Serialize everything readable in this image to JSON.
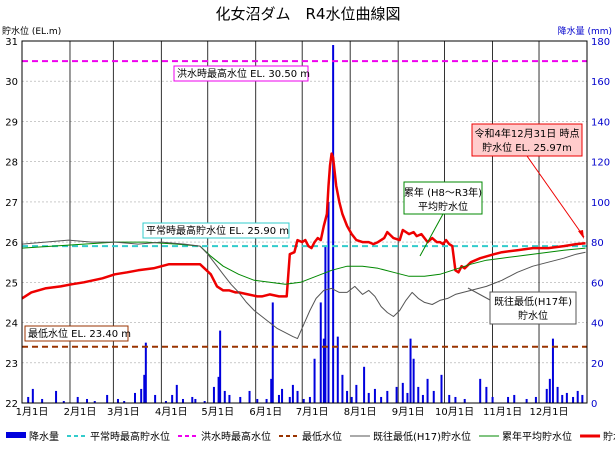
{
  "chart_data": {
    "type": "line",
    "title": "化女沼ダム　R4水位曲線図",
    "ylabel": "貯水位 (EL.m)",
    "y2label": "降水量 (mm)",
    "ylim": [
      22,
      31
    ],
    "y2lim": [
      0,
      180
    ],
    "yticks": [
      "22",
      "23",
      "24",
      "25",
      "26",
      "27",
      "28",
      "29",
      "30",
      "31"
    ],
    "y2ticks": [
      "0",
      "20",
      "40",
      "60",
      "80",
      "100",
      "120",
      "140",
      "160",
      "180"
    ],
    "months": [
      "1月1日",
      "2月1日",
      "3月1日",
      "4月1日",
      "5月1日",
      "6月1日",
      "7月1日",
      "8月1日",
      "9月1日",
      "10月1日",
      "11月1日",
      "12月1日"
    ],
    "colors": {
      "rain": "#0000dd",
      "normal_max": "#33cccc",
      "flood_max": "#ee00ee",
      "min_level": "#993300",
      "hist_low": "#555555",
      "avg": "#008800",
      "level": "#ee0000"
    },
    "hlines": [
      {
        "name": "flood_max",
        "value": 30.5
      },
      {
        "name": "normal_max",
        "value": 25.9
      },
      {
        "name": "min_level",
        "value": 23.4
      }
    ],
    "annotations": {
      "flood": "洪水時最高水位 EL. 30.50 m",
      "normal": "平常時最高貯水位 EL. 25.90 m",
      "minimum": "最低水位 EL. 23.40 m",
      "current_1": "令和4年12月31日 時点",
      "current_2": "貯水位 EL. 25.97m",
      "avg_1": "累年 (H8～R3年)",
      "avg_2": "平均貯水位",
      "hist_1": "既往最低(H17年)",
      "hist_2": "貯水位"
    },
    "legend": [
      {
        "key": "rain",
        "label": "降水量",
        "style": "bar"
      },
      {
        "key": "normal_max",
        "label": "平常時最高貯水位",
        "style": "dash"
      },
      {
        "key": "flood_max",
        "label": "洪水時最高水位",
        "style": "dash"
      },
      {
        "key": "min_level",
        "label": "最低水位",
        "style": "dash"
      },
      {
        "key": "hist_low",
        "label": "既往最低(H17)貯水位",
        "style": "line"
      },
      {
        "key": "avg",
        "label": "累年平均貯水位",
        "style": "line"
      },
      {
        "key": "level",
        "label": "貯水位",
        "style": "thick"
      }
    ],
    "series": [
      {
        "key": "level",
        "points": [
          [
            0,
            24.6
          ],
          [
            6,
            24.75
          ],
          [
            15,
            24.85
          ],
          [
            25,
            24.9
          ],
          [
            32,
            24.95
          ],
          [
            40,
            25.0
          ],
          [
            52,
            25.1
          ],
          [
            60,
            25.2
          ],
          [
            68,
            25.25
          ],
          [
            75,
            25.3
          ],
          [
            85,
            25.35
          ],
          [
            95,
            25.45
          ],
          [
            105,
            25.45
          ],
          [
            115,
            25.45
          ],
          [
            122,
            25.2
          ],
          [
            126,
            24.9
          ],
          [
            130,
            24.8
          ],
          [
            134,
            24.8
          ],
          [
            138,
            24.75
          ],
          [
            140,
            24.75
          ],
          [
            146,
            24.7
          ],
          [
            152,
            24.65
          ],
          [
            155,
            24.65
          ],
          [
            160,
            24.7
          ],
          [
            166,
            24.65
          ],
          [
            171,
            24.65
          ],
          [
            173,
            25.7
          ],
          [
            176,
            25.75
          ],
          [
            178,
            26.05
          ],
          [
            181,
            26.0
          ],
          [
            183,
            26.05
          ],
          [
            185,
            25.9
          ],
          [
            187,
            25.85
          ],
          [
            189,
            26.0
          ],
          [
            191,
            26.1
          ],
          [
            193,
            26.05
          ],
          [
            195,
            26.4
          ],
          [
            197,
            26.7
          ],
          [
            198,
            27.4
          ],
          [
            199,
            27.9
          ],
          [
            200,
            28.2
          ],
          [
            201,
            28.1
          ],
          [
            203,
            27.4
          ],
          [
            205,
            27.0
          ],
          [
            207,
            26.7
          ],
          [
            210,
            26.4
          ],
          [
            213,
            26.2
          ],
          [
            216,
            26.05
          ],
          [
            220,
            26.0
          ],
          [
            224,
            26.0
          ],
          [
            227,
            25.95
          ],
          [
            230,
            26.0
          ],
          [
            234,
            26.1
          ],
          [
            236,
            26.25
          ],
          [
            240,
            26.1
          ],
          [
            244,
            26.05
          ],
          [
            246,
            26.3
          ],
          [
            250,
            26.2
          ],
          [
            253,
            26.25
          ],
          [
            255,
            26.15
          ],
          [
            258,
            26.2
          ],
          [
            262,
            26.0
          ],
          [
            265,
            26.1
          ],
          [
            268,
            26.0
          ],
          [
            270,
            26.0
          ],
          [
            272,
            25.95
          ],
          [
            274,
            26.05
          ],
          [
            276,
            25.95
          ],
          [
            278,
            25.9
          ],
          [
            280,
            25.3
          ],
          [
            282,
            25.25
          ],
          [
            284,
            25.4
          ],
          [
            286,
            25.35
          ],
          [
            290,
            25.5
          ],
          [
            296,
            25.6
          ],
          [
            305,
            25.7
          ],
          [
            310,
            25.75
          ],
          [
            320,
            25.8
          ],
          [
            330,
            25.85
          ],
          [
            340,
            25.85
          ],
          [
            350,
            25.9
          ],
          [
            358,
            25.95
          ],
          [
            364,
            25.97
          ]
        ]
      },
      {
        "key": "avg",
        "points": [
          [
            0,
            25.85
          ],
          [
            20,
            25.9
          ],
          [
            40,
            25.95
          ],
          [
            60,
            26.0
          ],
          [
            80,
            26.0
          ],
          [
            100,
            25.95
          ],
          [
            115,
            25.9
          ],
          [
            122,
            25.65
          ],
          [
            130,
            25.4
          ],
          [
            140,
            25.2
          ],
          [
            150,
            25.05
          ],
          [
            160,
            25.0
          ],
          [
            170,
            24.95
          ],
          [
            180,
            25.0
          ],
          [
            190,
            25.15
          ],
          [
            200,
            25.3
          ],
          [
            210,
            25.4
          ],
          [
            220,
            25.4
          ],
          [
            230,
            25.35
          ],
          [
            240,
            25.25
          ],
          [
            250,
            25.15
          ],
          [
            260,
            25.15
          ],
          [
            270,
            25.2
          ],
          [
            278,
            25.3
          ],
          [
            290,
            25.45
          ],
          [
            300,
            25.55
          ],
          [
            310,
            25.6
          ],
          [
            320,
            25.65
          ],
          [
            330,
            25.7
          ],
          [
            340,
            25.75
          ],
          [
            350,
            25.8
          ],
          [
            364,
            25.85
          ]
        ]
      },
      {
        "key": "hist_low",
        "points": [
          [
            0,
            25.95
          ],
          [
            15,
            26.0
          ],
          [
            30,
            26.05
          ],
          [
            45,
            26.0
          ],
          [
            60,
            26.0
          ],
          [
            75,
            25.95
          ],
          [
            90,
            26.0
          ],
          [
            105,
            25.95
          ],
          [
            115,
            25.9
          ],
          [
            120,
            25.7
          ],
          [
            125,
            25.45
          ],
          [
            130,
            25.2
          ],
          [
            135,
            24.95
          ],
          [
            140,
            24.75
          ],
          [
            145,
            24.5
          ],
          [
            150,
            24.3
          ],
          [
            155,
            24.15
          ],
          [
            160,
            24.0
          ],
          [
            165,
            23.85
          ],
          [
            170,
            23.75
          ],
          [
            175,
            23.65
          ],
          [
            178,
            23.6
          ],
          [
            182,
            23.95
          ],
          [
            186,
            24.3
          ],
          [
            190,
            24.6
          ],
          [
            195,
            24.8
          ],
          [
            200,
            24.85
          ],
          [
            205,
            24.75
          ],
          [
            210,
            24.75
          ],
          [
            215,
            24.9
          ],
          [
            220,
            24.7
          ],
          [
            224,
            24.8
          ],
          [
            228,
            24.65
          ],
          [
            232,
            24.4
          ],
          [
            236,
            24.25
          ],
          [
            240,
            24.15
          ],
          [
            244,
            24.3
          ],
          [
            248,
            24.55
          ],
          [
            252,
            24.75
          ],
          [
            256,
            24.6
          ],
          [
            260,
            24.5
          ],
          [
            265,
            24.45
          ],
          [
            270,
            24.55
          ],
          [
            275,
            24.6
          ],
          [
            280,
            24.7
          ],
          [
            290,
            24.8
          ],
          [
            300,
            24.9
          ],
          [
            310,
            25.05
          ],
          [
            320,
            25.25
          ],
          [
            330,
            25.4
          ],
          [
            340,
            25.5
          ],
          [
            350,
            25.6
          ],
          [
            358,
            25.7
          ],
          [
            364,
            25.75
          ]
        ]
      }
    ],
    "rain": [
      [
        4,
        3
      ],
      [
        7,
        7
      ],
      [
        13,
        2
      ],
      [
        22,
        6
      ],
      [
        27,
        1
      ],
      [
        36,
        3
      ],
      [
        42,
        2
      ],
      [
        47,
        1
      ],
      [
        55,
        4
      ],
      [
        62,
        2
      ],
      [
        66,
        1
      ],
      [
        73,
        5
      ],
      [
        77,
        7
      ],
      [
        79,
        14
      ],
      [
        80,
        30
      ],
      [
        86,
        4
      ],
      [
        93,
        1
      ],
      [
        97,
        4
      ],
      [
        100,
        9
      ],
      [
        104,
        2
      ],
      [
        110,
        3
      ],
      [
        112,
        2
      ],
      [
        118,
        1
      ],
      [
        124,
        8
      ],
      [
        127,
        13
      ],
      [
        128,
        36
      ],
      [
        131,
        6
      ],
      [
        134,
        4
      ],
      [
        141,
        3
      ],
      [
        147,
        6
      ],
      [
        152,
        2
      ],
      [
        158,
        2
      ],
      [
        161,
        12
      ],
      [
        162,
        50
      ],
      [
        166,
        4
      ],
      [
        168,
        7
      ],
      [
        173,
        3
      ],
      [
        175,
        9
      ],
      [
        178,
        6
      ],
      [
        182,
        2
      ],
      [
        186,
        3
      ],
      [
        189,
        22
      ],
      [
        193,
        50
      ],
      [
        195,
        32
      ],
      [
        196,
        78
      ],
      [
        198,
        100
      ],
      [
        201,
        178
      ],
      [
        204,
        33
      ],
      [
        207,
        14
      ],
      [
        210,
        6
      ],
      [
        213,
        3
      ],
      [
        216,
        9
      ],
      [
        221,
        18
      ],
      [
        224,
        5
      ],
      [
        228,
        7
      ],
      [
        232,
        3
      ],
      [
        236,
        6
      ],
      [
        242,
        8
      ],
      [
        246,
        10
      ],
      [
        249,
        5
      ],
      [
        251,
        32
      ],
      [
        253,
        22
      ],
      [
        256,
        8
      ],
      [
        259,
        4
      ],
      [
        262,
        12
      ],
      [
        266,
        6
      ],
      [
        271,
        14
      ],
      [
        276,
        4
      ],
      [
        280,
        3
      ],
      [
        286,
        2
      ],
      [
        296,
        12
      ],
      [
        300,
        8
      ],
      [
        304,
        3
      ],
      [
        314,
        3
      ],
      [
        318,
        4
      ],
      [
        326,
        2
      ],
      [
        332,
        3
      ],
      [
        339,
        7
      ],
      [
        341,
        12
      ],
      [
        343,
        32
      ],
      [
        346,
        8
      ],
      [
        349,
        4
      ],
      [
        352,
        5
      ],
      [
        356,
        3
      ],
      [
        359,
        6
      ],
      [
        362,
        4
      ]
    ]
  }
}
